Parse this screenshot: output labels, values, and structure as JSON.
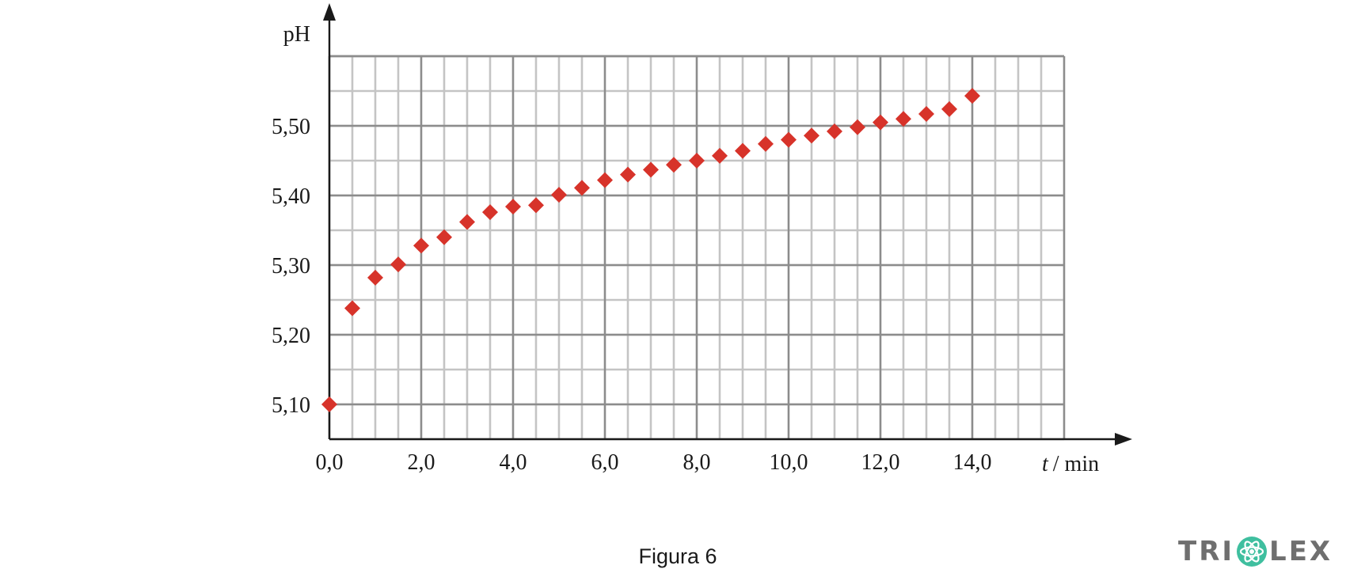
{
  "chart_data": {
    "type": "scatter",
    "ylabel": "pH",
    "xlabel_var": "t",
    "xlabel_unit": "/ min",
    "caption": "Figura 6",
    "xlim": [
      0,
      16
    ],
    "ylim": [
      5.05,
      5.6
    ],
    "x_ticks": [
      0,
      2,
      4,
      6,
      8,
      10,
      12,
      14
    ],
    "x_tick_labels": [
      "0,0",
      "2,0",
      "4,0",
      "6,0",
      "8,0",
      "10,0",
      "12,0",
      "14,0"
    ],
    "y_ticks": [
      5.1,
      5.2,
      5.3,
      5.4,
      5.5
    ],
    "y_tick_labels": [
      "5,10",
      "5,20",
      "5,30",
      "5,40",
      "5,50"
    ],
    "grid": true,
    "marker": "diamond",
    "marker_color": "#d7332a",
    "points": [
      {
        "x": 0.0,
        "y": 5.1
      },
      {
        "x": 0.5,
        "y": 5.238
      },
      {
        "x": 1.0,
        "y": 5.282
      },
      {
        "x": 1.5,
        "y": 5.301
      },
      {
        "x": 2.0,
        "y": 5.328
      },
      {
        "x": 2.5,
        "y": 5.34
      },
      {
        "x": 3.0,
        "y": 5.362
      },
      {
        "x": 3.5,
        "y": 5.376
      },
      {
        "x": 4.0,
        "y": 5.384
      },
      {
        "x": 4.5,
        "y": 5.386
      },
      {
        "x": 5.0,
        "y": 5.401
      },
      {
        "x": 5.5,
        "y": 5.411
      },
      {
        "x": 6.0,
        "y": 5.422
      },
      {
        "x": 6.5,
        "y": 5.43
      },
      {
        "x": 7.0,
        "y": 5.437
      },
      {
        "x": 7.5,
        "y": 5.444
      },
      {
        "x": 8.0,
        "y": 5.45
      },
      {
        "x": 8.5,
        "y": 5.457
      },
      {
        "x": 9.0,
        "y": 5.464
      },
      {
        "x": 9.5,
        "y": 5.474
      },
      {
        "x": 10.0,
        "y": 5.48
      },
      {
        "x": 10.5,
        "y": 5.486
      },
      {
        "x": 11.0,
        "y": 5.492
      },
      {
        "x": 11.5,
        "y": 5.498
      },
      {
        "x": 12.0,
        "y": 5.505
      },
      {
        "x": 12.5,
        "y": 5.51
      },
      {
        "x": 13.0,
        "y": 5.517
      },
      {
        "x": 13.5,
        "y": 5.524
      },
      {
        "x": 14.0,
        "y": 5.543
      }
    ]
  },
  "logo": {
    "text_left": "TRI",
    "text_right": "LEX",
    "color": "#6f6f6f",
    "atom_color": "#3fbf9f",
    "icon": "atom-icon"
  }
}
